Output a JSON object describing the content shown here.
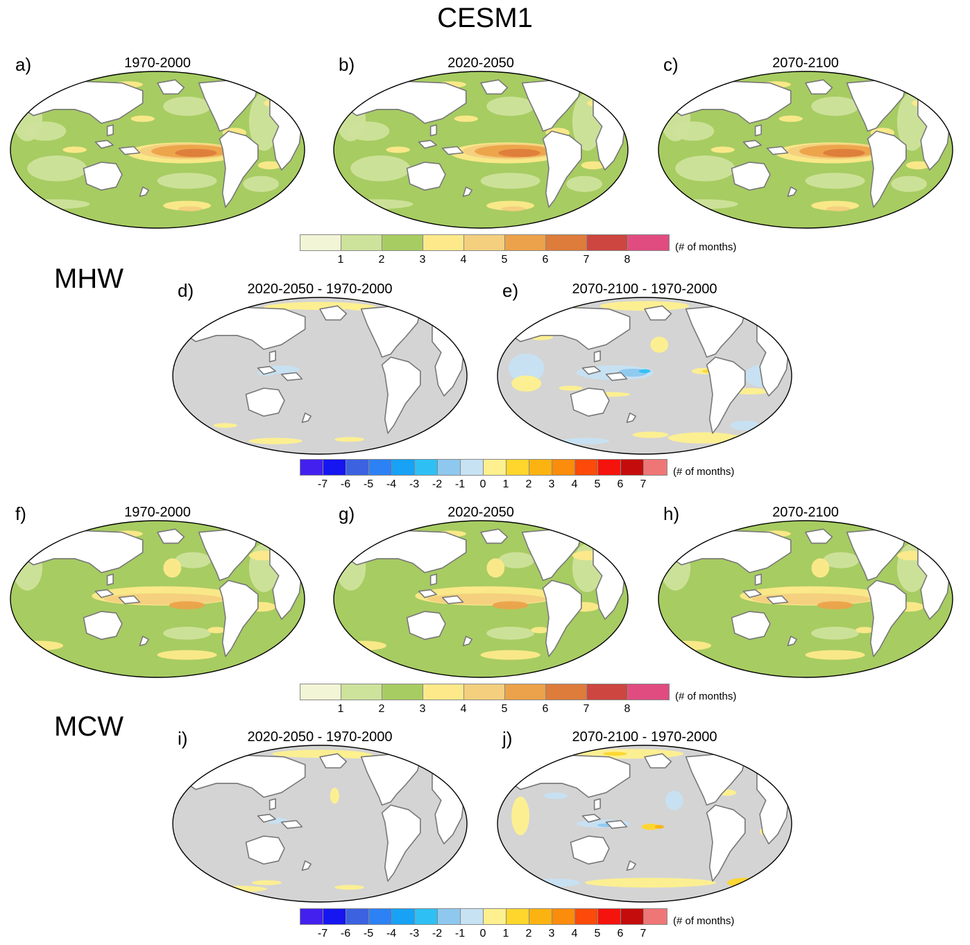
{
  "title": "CESM1",
  "sections": {
    "mhw": "MHW",
    "mcw": "MCW"
  },
  "panels": [
    {
      "letter": "a)",
      "title": "1970-2000"
    },
    {
      "letter": "b)",
      "title": "2020-2050"
    },
    {
      "letter": "c)",
      "title": "2070-2100"
    },
    {
      "letter": "d)",
      "title": "2020-2050 - 1970-2000"
    },
    {
      "letter": "e)",
      "title": "2070-2100 - 1970-2000"
    },
    {
      "letter": "f)",
      "title": "1970-2000"
    },
    {
      "letter": "g)",
      "title": "2020-2050"
    },
    {
      "letter": "h)",
      "title": "2070-2100"
    },
    {
      "letter": "i)",
      "title": "2020-2050 - 1970-2000"
    },
    {
      "letter": "j)",
      "title": "2070-2100 - 1970-2000"
    }
  ],
  "colorbars": {
    "absolute": {
      "unit": "(# of months)",
      "colors": [
        "#f2f5d6",
        "#cde29b",
        "#a7cc62",
        "#fde98a",
        "#f3cf7e",
        "#eca24a",
        "#dd7c3b",
        "#cd4640",
        "#e04c80"
      ],
      "ticks": [
        "1",
        "2",
        "3",
        "4",
        "5",
        "6",
        "7",
        "8"
      ]
    },
    "difference": {
      "unit": "(# of months)",
      "colors": [
        "#4320ee",
        "#1616f0",
        "#3c62e0",
        "#2c82f4",
        "#17a2f5",
        "#2ec0f4",
        "#8ec8ee",
        "#c6e2f3",
        "#fef08e",
        "#fed62c",
        "#fcb311",
        "#fc8c0b",
        "#fb4a09",
        "#f5130d",
        "#c50c0c",
        "#ef7676"
      ],
      "ticks": [
        "-7",
        "-6",
        "-5",
        "-4",
        "-3",
        "-2",
        "-1",
        "0",
        "1",
        "2",
        "3",
        "4",
        "5",
        "6",
        "7"
      ]
    }
  },
  "map_style": {
    "abs_ocean": "#a7cc62",
    "diff_ocean": "#d4d4d4",
    "land": "#ffffff",
    "coast": "#777777"
  }
}
